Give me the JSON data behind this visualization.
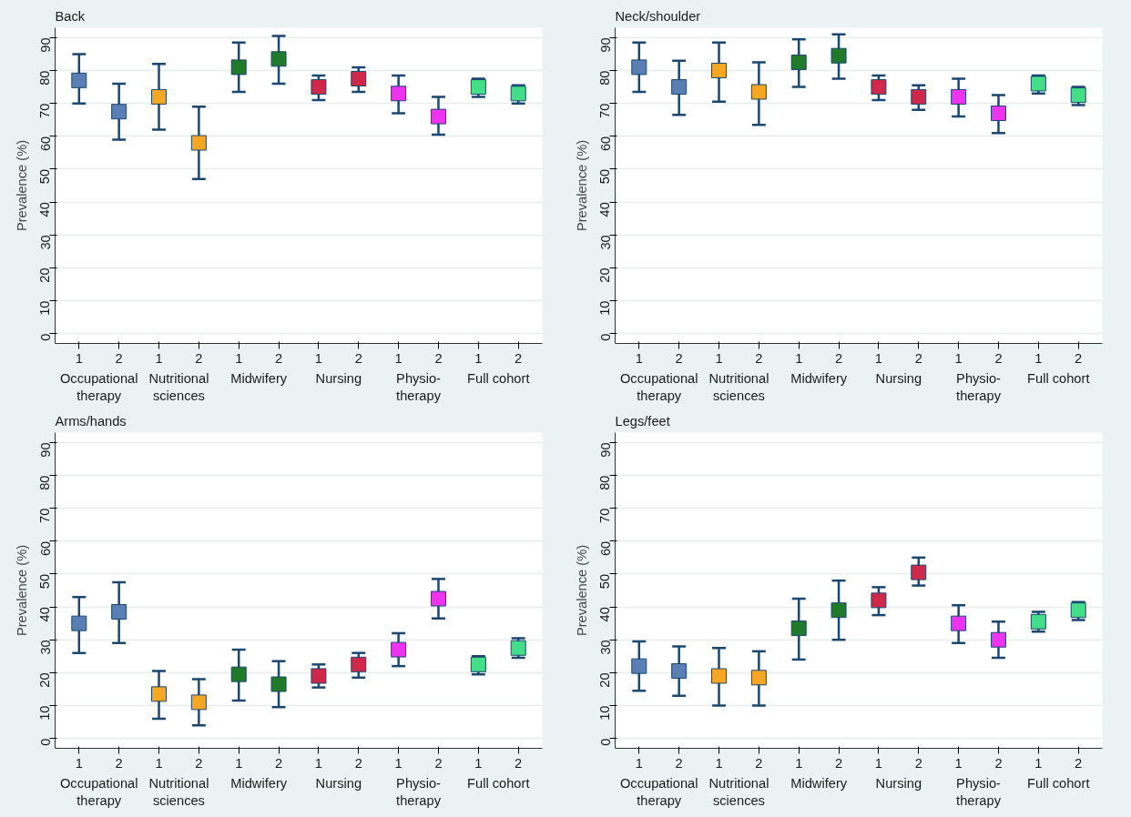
{
  "chart_data": [
    {
      "type": "scatter",
      "title": "Back",
      "ylabel": "Prevalence (%)",
      "categories": [
        "1",
        "2",
        "1",
        "2",
        "1",
        "2",
        "1",
        "2",
        "1",
        "2",
        "1",
        "2"
      ],
      "values": [
        77,
        67.5,
        72,
        58,
        81,
        83.5,
        75,
        77.5,
        73,
        66,
        75,
        73
      ],
      "errors": [
        [
          70,
          85
        ],
        [
          59,
          76
        ],
        [
          62,
          82
        ],
        [
          47,
          69
        ],
        [
          73.5,
          88.5
        ],
        [
          76,
          90.5
        ],
        [
          71,
          78.5
        ],
        [
          73.5,
          81
        ],
        [
          67,
          78.5
        ],
        [
          60.5,
          72
        ],
        [
          72,
          77.5
        ],
        [
          70,
          75.5
        ]
      ],
      "colors": [
        "#5a7fb5",
        "#5a7fb5",
        "#f5a623",
        "#f5a623",
        "#1f7a2a",
        "#1f7a2a",
        "#d0284a",
        "#d0284a",
        "#ee33ee",
        "#ee33ee",
        "#44dd88",
        "#44dd88"
      ],
      "annotations": [
        "Occupational\ntherapy",
        "Nutritional\nsciences",
        "Midwifery",
        "Nursing",
        "Physio-\ntherapy",
        "Full cohort"
      ],
      "ylim": [
        -3,
        93
      ],
      "yticks": [
        0,
        10,
        20,
        30,
        40,
        50,
        60,
        70,
        80,
        90
      ],
      "grid": "y",
      "marker": "square"
    },
    {
      "type": "scatter",
      "title": "Neck/shoulder",
      "ylabel": "Prevalence (%)",
      "categories": [
        "1",
        "2",
        "1",
        "2",
        "1",
        "2",
        "1",
        "2",
        "1",
        "2",
        "1",
        "2"
      ],
      "values": [
        81,
        75,
        80,
        73.5,
        82.5,
        84.5,
        75,
        72,
        72,
        67,
        76,
        72.5
      ],
      "errors": [
        [
          73.5,
          88.5
        ],
        [
          66.5,
          83
        ],
        [
          70.5,
          88.5
        ],
        [
          63.5,
          82.5
        ],
        [
          75,
          89.5
        ],
        [
          77.5,
          91
        ],
        [
          71,
          78.5
        ],
        [
          68,
          75.5
        ],
        [
          66,
          77.5
        ],
        [
          61,
          72.5
        ],
        [
          73,
          78.5
        ],
        [
          69.5,
          75
        ]
      ],
      "colors": [
        "#5a7fb5",
        "#5a7fb5",
        "#f5a623",
        "#f5a623",
        "#1f7a2a",
        "#1f7a2a",
        "#d0284a",
        "#d0284a",
        "#ee33ee",
        "#ee33ee",
        "#44dd88",
        "#44dd88"
      ],
      "annotations": [
        "Occupational\ntherapy",
        "Nutritional\nsciences",
        "Midwifery",
        "Nursing",
        "Physio-\ntherapy",
        "Full cohort"
      ],
      "ylim": [
        -3,
        93
      ],
      "yticks": [
        0,
        10,
        20,
        30,
        40,
        50,
        60,
        70,
        80,
        90
      ],
      "grid": "y",
      "marker": "square"
    },
    {
      "type": "scatter",
      "title": "Arms/hands",
      "ylabel": "Prevalence (%)",
      "categories": [
        "1",
        "2",
        "1",
        "2",
        "1",
        "2",
        "1",
        "2",
        "1",
        "2",
        "1",
        "2"
      ],
      "values": [
        35,
        38.5,
        13.5,
        11,
        19.5,
        16.5,
        19,
        22.5,
        27,
        42.5,
        22.5,
        27.5
      ],
      "errors": [
        [
          26,
          43
        ],
        [
          29,
          47.5
        ],
        [
          6,
          20.5
        ],
        [
          4,
          18
        ],
        [
          11.5,
          27
        ],
        [
          9.5,
          23.5
        ],
        [
          15.5,
          22.5
        ],
        [
          18.5,
          26
        ],
        [
          22,
          32
        ],
        [
          36.5,
          48.5
        ],
        [
          19.5,
          25
        ],
        [
          24.5,
          30.5
        ]
      ],
      "colors": [
        "#5a7fb5",
        "#5a7fb5",
        "#f5a623",
        "#f5a623",
        "#1f7a2a",
        "#1f7a2a",
        "#d0284a",
        "#d0284a",
        "#ee33ee",
        "#ee33ee",
        "#44dd88",
        "#44dd88"
      ],
      "annotations": [
        "Occupational\ntherapy",
        "Nutritional\nsciences",
        "Midwifery",
        "Nursing",
        "Physio-\ntherapy",
        "Full cohort"
      ],
      "ylim": [
        -3,
        93
      ],
      "yticks": [
        0,
        10,
        20,
        30,
        40,
        50,
        60,
        70,
        80,
        90
      ],
      "grid": "y",
      "marker": "square"
    },
    {
      "type": "scatter",
      "title": "Legs/feet",
      "ylabel": "Prevalence (%)",
      "categories": [
        "1",
        "2",
        "1",
        "2",
        "1",
        "2",
        "1",
        "2",
        "1",
        "2",
        "1",
        "2"
      ],
      "values": [
        22,
        20.5,
        19,
        18.5,
        33.5,
        39,
        42,
        50.5,
        35,
        30,
        35.5,
        39
      ],
      "errors": [
        [
          14.5,
          29.5
        ],
        [
          13,
          28
        ],
        [
          10,
          27.5
        ],
        [
          10,
          26.5
        ],
        [
          24,
          42.5
        ],
        [
          30,
          48
        ],
        [
          37.5,
          46
        ],
        [
          46.5,
          55
        ],
        [
          29,
          40.5
        ],
        [
          24.5,
          35.5
        ],
        [
          32.5,
          38.5
        ],
        [
          36,
          41.5
        ]
      ],
      "colors": [
        "#5a7fb5",
        "#5a7fb5",
        "#f5a623",
        "#f5a623",
        "#1f7a2a",
        "#1f7a2a",
        "#d0284a",
        "#d0284a",
        "#ee33ee",
        "#ee33ee",
        "#44dd88",
        "#44dd88"
      ],
      "annotations": [
        "Occupational\ntherapy",
        "Nutritional\nsciences",
        "Midwifery",
        "Nursing",
        "Physio-\ntherapy",
        "Full cohort"
      ],
      "ylim": [
        -3,
        93
      ],
      "yticks": [
        0,
        10,
        20,
        30,
        40,
        50,
        60,
        70,
        80,
        90
      ],
      "grid": "y",
      "marker": "square"
    }
  ]
}
